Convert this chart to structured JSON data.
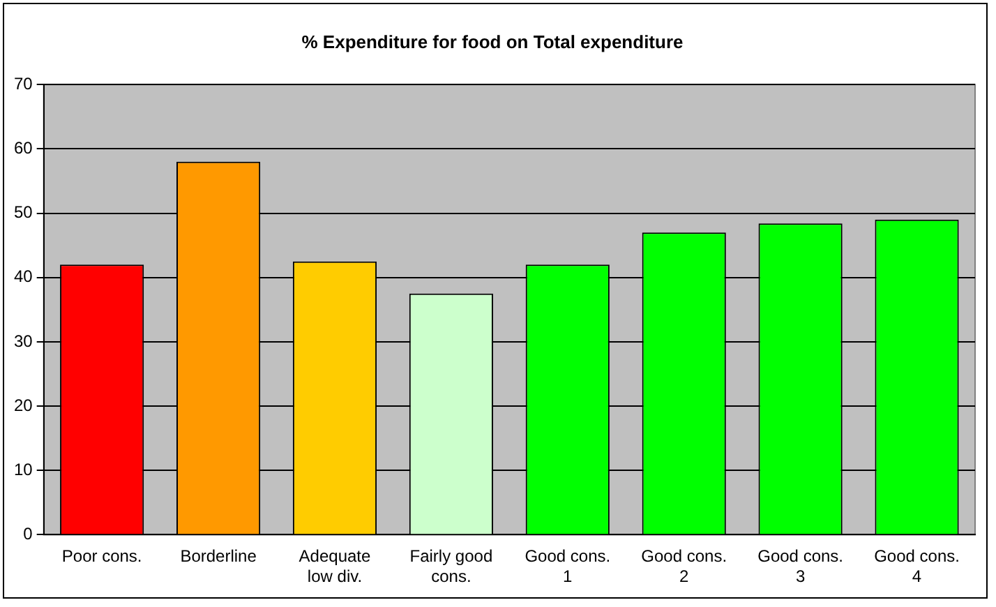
{
  "chart_data": {
    "type": "bar",
    "title": "% Expenditure for food on Total expenditure",
    "categories": [
      "Poor cons.",
      "Borderline",
      "Adequate low div.",
      "Fairly good cons.",
      "Good cons. 1",
      "Good cons. 2",
      "Good cons. 3",
      "Good cons. 4"
    ],
    "values": [
      42,
      58,
      42.5,
      37.5,
      42,
      47,
      48.4,
      49
    ],
    "colors": [
      "#ff0000",
      "#ff9900",
      "#ffcc00",
      "#ccffcc",
      "#00ff00",
      "#00ff00",
      "#00ff00",
      "#00ff00"
    ],
    "ylim": [
      0,
      70
    ],
    "yticks": [
      0,
      10,
      20,
      30,
      40,
      50,
      60,
      70
    ],
    "grid": "y",
    "legend": false
  }
}
